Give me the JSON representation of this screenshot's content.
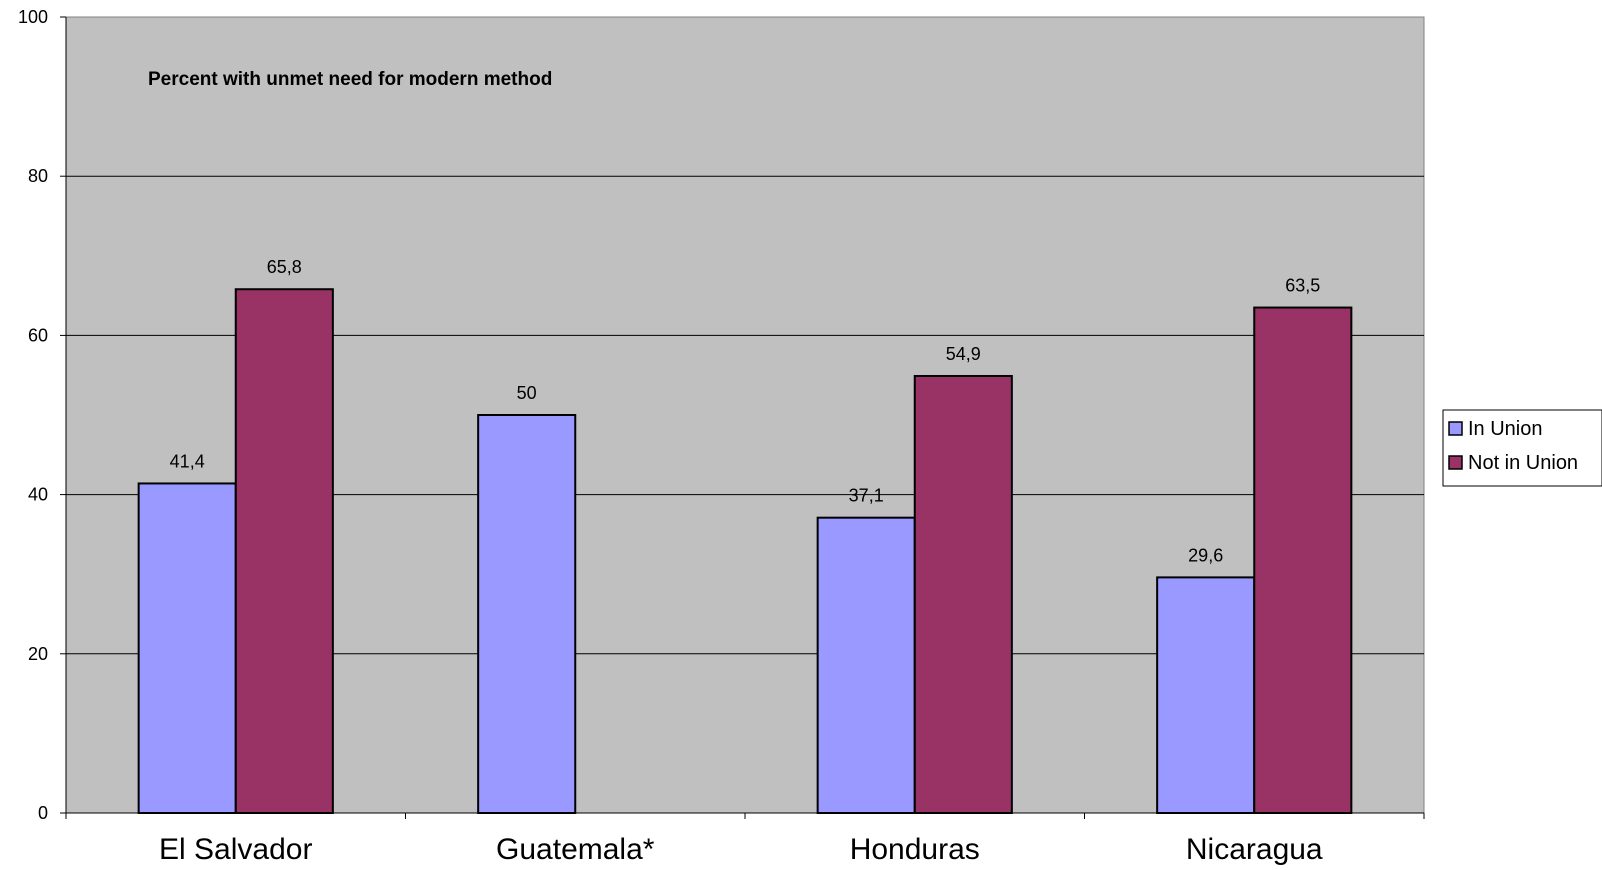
{
  "chart_data": {
    "type": "bar",
    "title": "Percent with unmet need for modern method",
    "categories": [
      "El Salvador",
      "Guatemala*",
      "Honduras",
      "Nicaragua"
    ],
    "series": [
      {
        "name": "In Union",
        "values": [
          41.4,
          50,
          37.1,
          29.6
        ],
        "labels": [
          "41,4",
          "50",
          "37,1",
          "29,6"
        ],
        "color": "#9999ff"
      },
      {
        "name": "Not in Union",
        "values": [
          65.8,
          null,
          54.9,
          63.5
        ],
        "labels": [
          "65,8",
          "",
          "54,9",
          "63,5"
        ],
        "color": "#993366"
      }
    ],
    "ylim": [
      0,
      100
    ],
    "yticks": [
      0,
      20,
      40,
      60,
      80,
      100
    ],
    "grid": true,
    "plot_background": "#c0c0c0",
    "legend_position": "right"
  }
}
